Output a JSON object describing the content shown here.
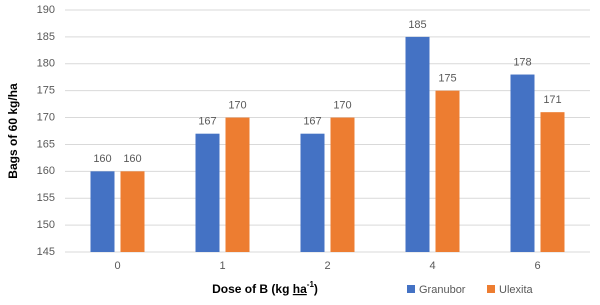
{
  "chart_data": {
    "type": "bar",
    "y_label": "Bags of 60 kg/ha",
    "x_label": "Dose of B (kg ",
    "x_label_unit": "ha",
    "x_label_sup": "-1",
    "x_label_end": ")",
    "categories": [
      "0",
      "1",
      "2",
      "4",
      "6"
    ],
    "series": [
      {
        "name": "Granubor",
        "color": "#4472c4",
        "values": [
          160,
          167,
          167,
          185,
          178
        ]
      },
      {
        "name": "Ulexita",
        "color": "#ed7d31",
        "values": [
          160,
          170,
          170,
          175,
          171
        ]
      }
    ],
    "ylim": [
      145,
      190
    ],
    "yticks": [
      145,
      150,
      155,
      160,
      165,
      170,
      175,
      180,
      185,
      190
    ],
    "grid": true,
    "legend": "bottom-right"
  }
}
